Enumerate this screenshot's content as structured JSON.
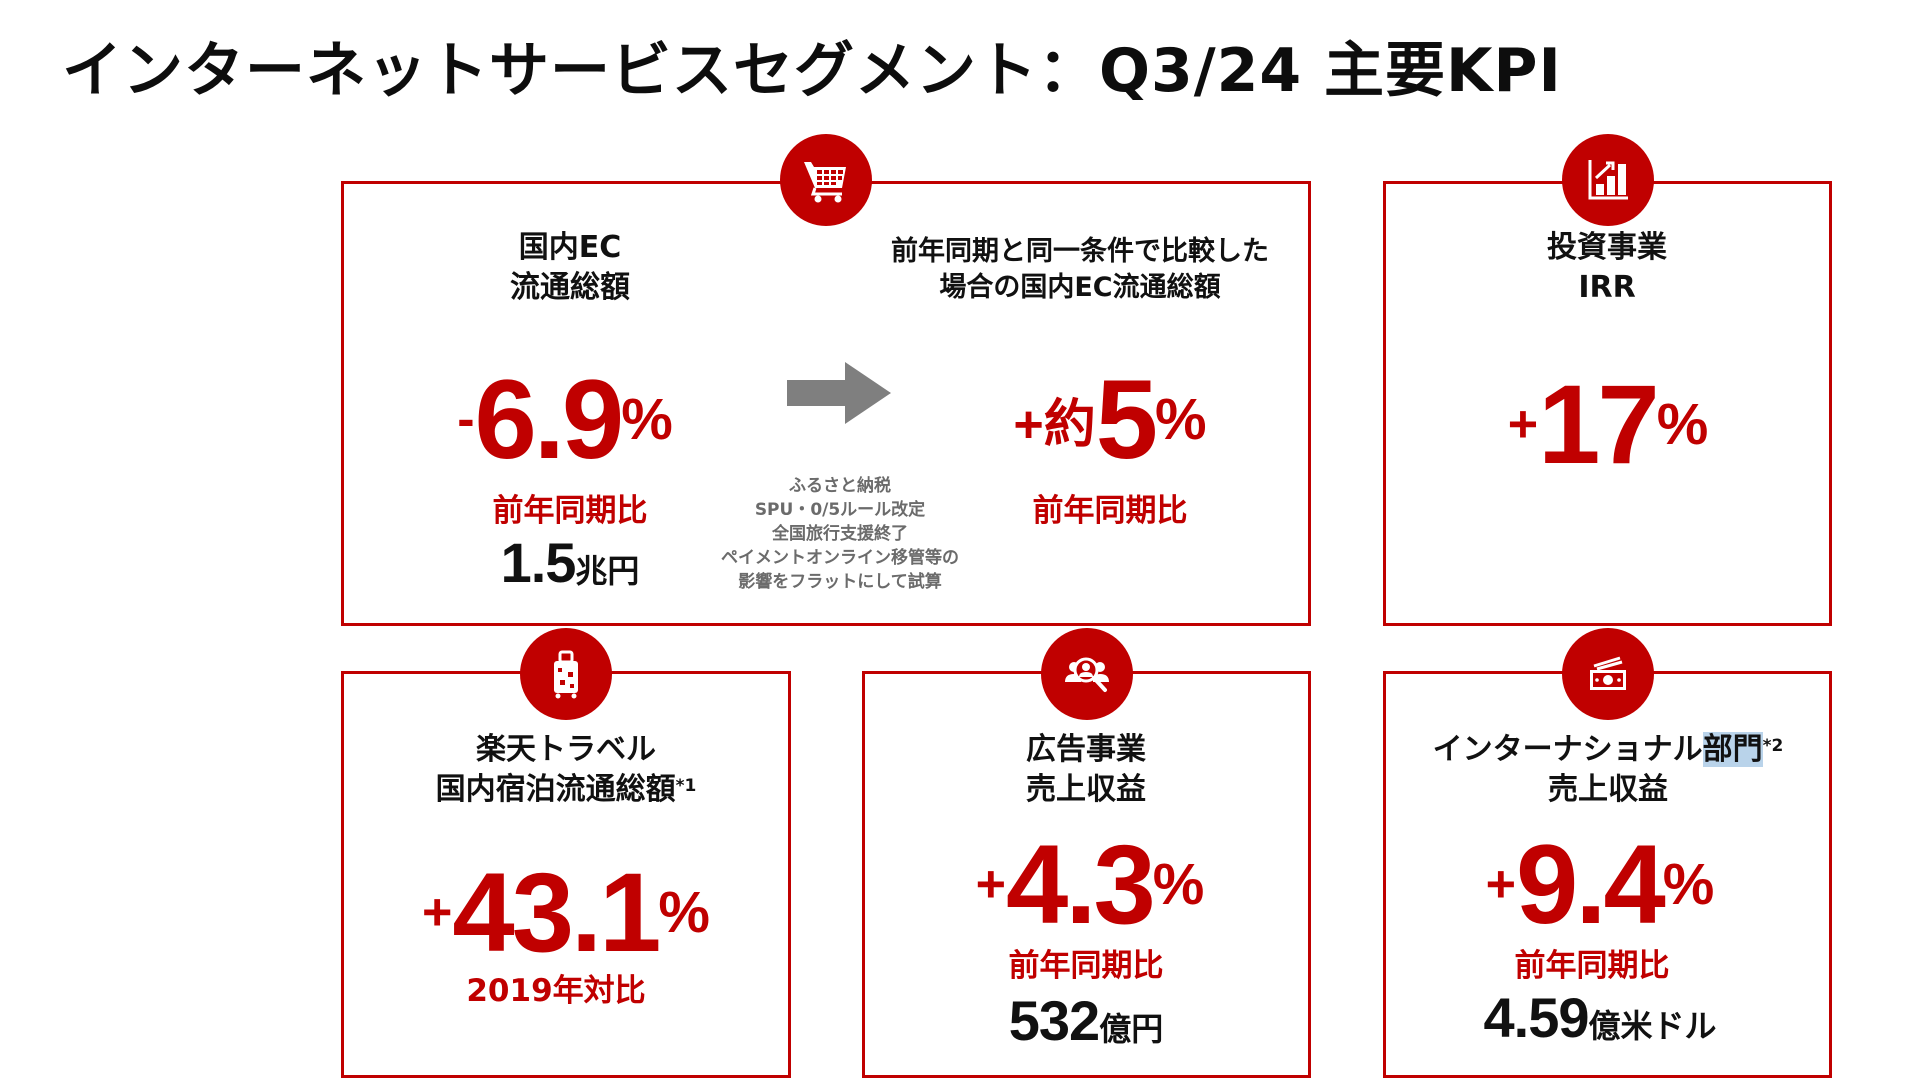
{
  "title": "インターネットサービスセグメント：Q3/24 主要KPI",
  "colors": {
    "accent": "#c00000",
    "note_gray": "#6b6b6b",
    "arrow_gray": "#7f7f7f"
  },
  "ec": {
    "icon": "shopping-cart-icon",
    "label_line1": "国内EC",
    "label_line2": "流通総額",
    "sign": "-",
    "value": "6.9",
    "unit": "%",
    "sub": "前年同期比",
    "amount": "1.5",
    "amount_unit": "兆円",
    "note_lines": [
      "ふるさと納税",
      "SPU・0/5ルール改定",
      "全国旅行支援終了",
      "ペイメントオンライン移管等の",
      "影響をフラットにして試算"
    ],
    "adj_label_line1": "前年同期と同一条件で比較した",
    "adj_label_line2": "場合の国内EC流通総額",
    "adj_sign": "+約",
    "adj_value": "5",
    "adj_unit": "%",
    "adj_sub": "前年同期比"
  },
  "irr": {
    "icon": "growth-chart-icon",
    "label_line1": "投資事業",
    "label_line2": "IRR",
    "sign": "+",
    "value": "17",
    "unit": "%"
  },
  "travel": {
    "icon": "suitcase-icon",
    "label_line1": "楽天トラベル",
    "label_line2": "国内宿泊流通総額",
    "footnote": "*1",
    "sign": "+",
    "value": "43.1",
    "unit": "%",
    "sub": "2019年対比"
  },
  "ads": {
    "icon": "audience-search-icon",
    "label_line1": "広告事業",
    "label_line2": "売上収益",
    "sign": "+",
    "value": "4.3",
    "unit": "%",
    "sub": "前年同期比",
    "amount": "532",
    "amount_unit": "億円"
  },
  "intl": {
    "icon": "money-bill-icon",
    "label_line1a": "インターナショナル",
    "label_line1b": "部門",
    "footnote": "*2",
    "label_line2": "売上収益",
    "sign": "+",
    "value": "9.4",
    "unit": "%",
    "sub": "前年同期比",
    "amount": "4.59",
    "amount_unit": "億米ドル"
  }
}
